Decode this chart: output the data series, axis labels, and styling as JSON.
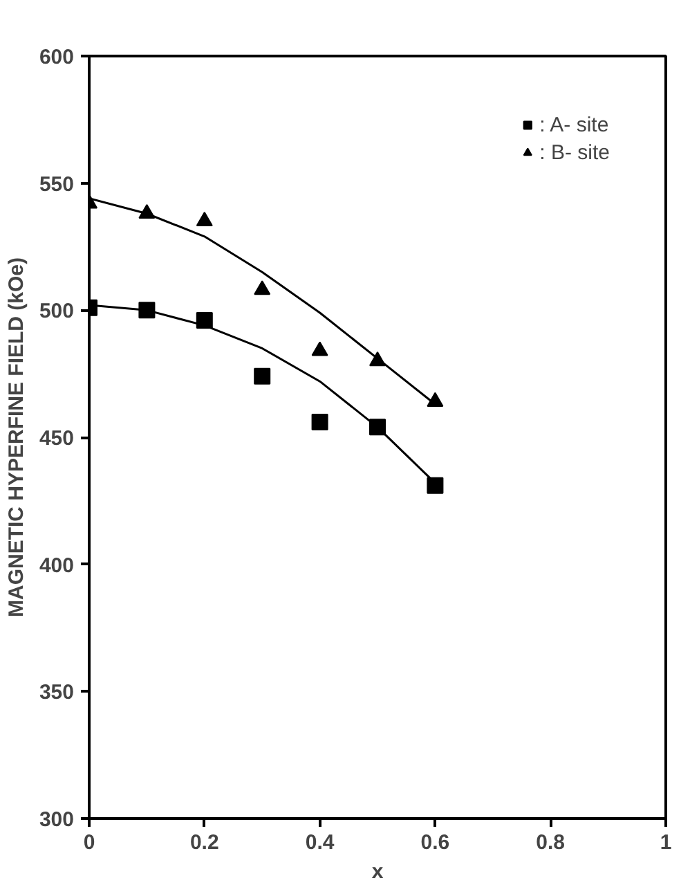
{
  "chart_data": {
    "type": "scatter",
    "xlabel": "x",
    "ylabel": "MAGNETIC HYPERFINE FIELD (kOe)",
    "xlim": [
      0,
      1
    ],
    "ylim": [
      300,
      600
    ],
    "xticks": [
      0,
      0.2,
      0.4,
      0.6,
      0.8,
      1
    ],
    "yticks": [
      300,
      350,
      400,
      450,
      500,
      550,
      600
    ],
    "grid": false,
    "legend": "top right",
    "series": [
      {
        "name": ": A- site",
        "color": "#000000",
        "marker": "square",
        "x": [
          0,
          0.1,
          0.2,
          0.3,
          0.4,
          0.5,
          0.6
        ],
        "values": [
          501,
          500,
          496,
          474,
          456,
          454,
          431
        ]
      },
      {
        "name": ": B- site",
        "color": "#000000",
        "marker": "triangle",
        "x": [
          0,
          0.1,
          0.2,
          0.3,
          0.4,
          0.5,
          0.6
        ],
        "values": [
          542,
          538,
          535,
          508,
          484,
          480,
          464
        ]
      },
      {
        "type": "line",
        "color": "#000000",
        "x": [
          0,
          0.1,
          0.2,
          0.3,
          0.4,
          0.5,
          0.6
        ],
        "values": [
          502,
          500,
          494,
          485,
          472,
          454,
          432
        ]
      },
      {
        "type": "line",
        "color": "#000000",
        "x": [
          0,
          0.1,
          0.2,
          0.3,
          0.4,
          0.5,
          0.6
        ],
        "values": [
          544,
          538,
          529,
          515,
          499,
          481,
          463
        ]
      }
    ]
  }
}
